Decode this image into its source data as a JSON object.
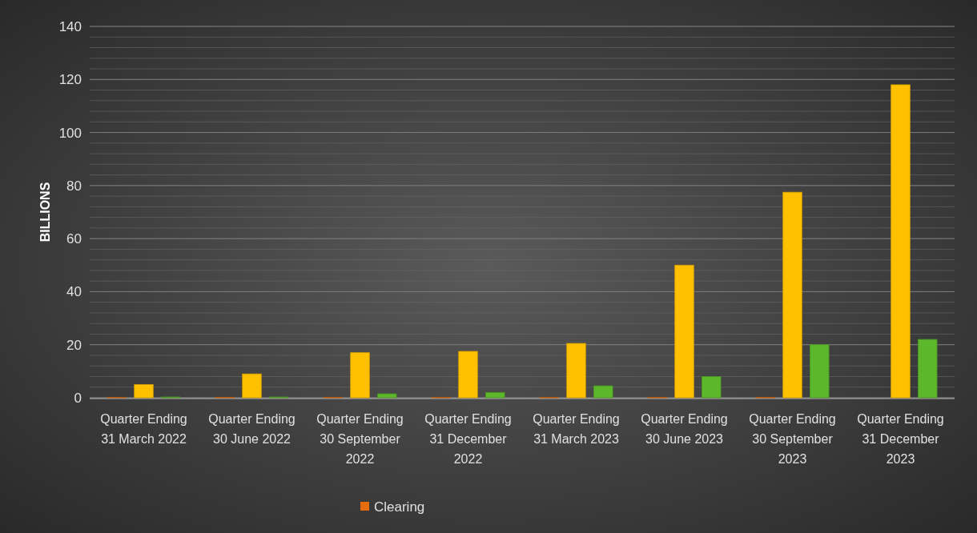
{
  "chart_data": {
    "type": "bar",
    "ylabel": "BILLIONS",
    "categories": [
      "Quarter Ending 31 March 2022",
      "Quarter Ending 30 June 2022",
      "Quarter Ending 30 September 2022",
      "Quarter Ending 31 December 2022",
      "Quarter Ending 31 March 2023",
      "Quarter Ending 30 June 2023",
      "Quarter Ending 30 September 2023",
      "Quarter Ending 31 December 2023"
    ],
    "series": [
      {
        "name": "Clearing",
        "color": "#e46c0a",
        "values": [
          0.2,
          0.2,
          0.2,
          0.2,
          0.2,
          0.2,
          0.2,
          0
        ]
      },
      {
        "color": "#ffc000",
        "values": [
          5,
          9,
          17,
          17.5,
          20.5,
          50,
          77.5,
          118
        ]
      },
      {
        "color": "#5cb82a",
        "values": [
          0.3,
          0.3,
          1.5,
          2,
          4.5,
          8,
          20,
          22
        ]
      }
    ],
    "ylim": [
      0,
      140
    ],
    "yticks": [
      0,
      20,
      40,
      60,
      80,
      100,
      120,
      140
    ],
    "grid": "y",
    "legend": "bottom"
  }
}
